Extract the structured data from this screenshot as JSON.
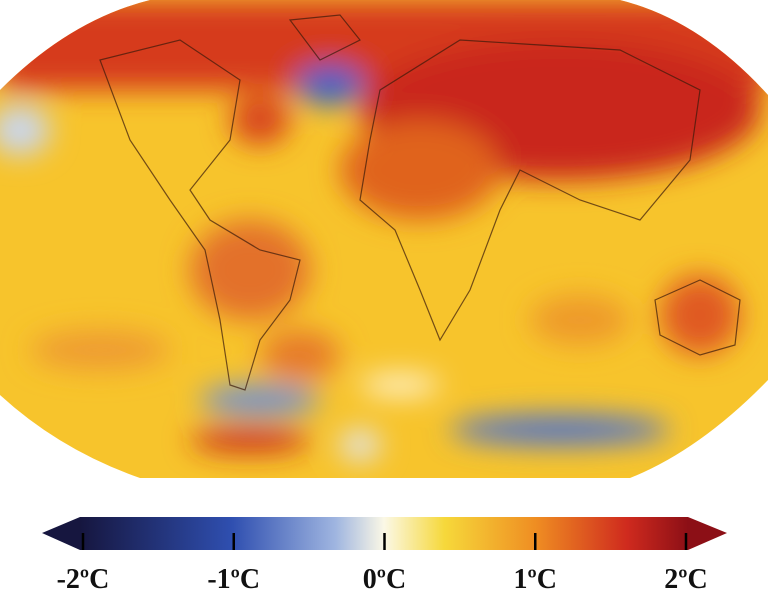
{
  "colorbar": {
    "range": [
      -2,
      2
    ],
    "ticks": [
      {
        "value": -2,
        "label": "-2ºC"
      },
      {
        "value": -1,
        "label": "-1ºC"
      },
      {
        "value": 0,
        "label": "0ºC"
      },
      {
        "value": 1,
        "label": "1ºC"
      },
      {
        "value": 2,
        "label": "2ºC"
      }
    ]
  }
}
